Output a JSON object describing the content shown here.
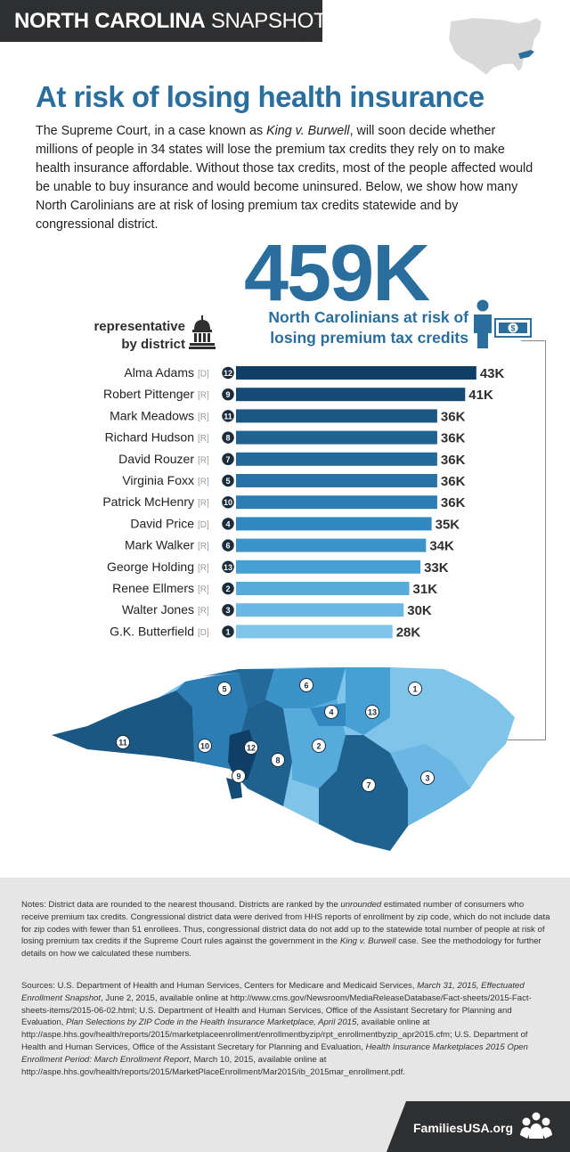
{
  "header": {
    "title_bold": "NORTH CAROLINA",
    "title_light": " SNAPSHOT"
  },
  "title": "At risk of losing health insurance",
  "intro_parts": {
    "a": "The Supreme Court, in a case known as ",
    "case": "King v. Burwell",
    "b": ", will soon decide whether millions of people in 34 states will lose the premium tax credits they rely on to make health insurance affordable. Without those tax credits, most of the people affected would be unable to buy insurance and would become uninsured. Below, we show how many North Carolinians are at risk of losing premium tax credits statewide and by congressional district."
  },
  "big_number": "459K",
  "big_subtitle_1": "North Carolinians at risk of",
  "big_subtitle_2": "losing premium tax credits",
  "money_symbol": "$",
  "rep_label_1": "representative",
  "rep_label_2": "by district",
  "colors": {
    "dark": "#1b3a55",
    "bar_shades": [
      "#0f3f66",
      "#144a73",
      "#1a5782",
      "#1f6290",
      "#23699a",
      "#2772a6",
      "#2c7db3",
      "#3188c0",
      "#3a93c9",
      "#47a0d3",
      "#56abdb",
      "#69b7e2",
      "#7fc4e9"
    ],
    "title_blue": "#2a6e9e"
  },
  "chart_data": {
    "type": "bar",
    "orientation": "horizontal",
    "categories": [
      "Alma Adams",
      "Robert Pittenger",
      "Mark Meadows",
      "Richard Hudson",
      "David Rouzer",
      "Virginia Foxx",
      "Patrick McHenry",
      "David Price",
      "Mark Walker",
      "George Holding",
      "Renee Ellmers",
      "Walter Jones",
      "G.K. Butterfield"
    ],
    "parties": [
      "[D]",
      "[R]",
      "[R]",
      "[R]",
      "[R]",
      "[R]",
      "[R]",
      "[D]",
      "[R]",
      "[R]",
      "[R]",
      "[R]",
      "[D]"
    ],
    "districts": [
      "12",
      "9",
      "11",
      "8",
      "7",
      "5",
      "10",
      "4",
      "6",
      "13",
      "2",
      "3",
      "1"
    ],
    "values": [
      43,
      41,
      36,
      36,
      36,
      36,
      36,
      35,
      34,
      33,
      31,
      30,
      28
    ],
    "value_labels": [
      "43K",
      "41K",
      "36K",
      "36K",
      "36K",
      "36K",
      "36K",
      "35K",
      "34K",
      "33K",
      "31K",
      "30K",
      "28K"
    ],
    "unit": "K"
  },
  "map": {
    "districts": [
      "1",
      "2",
      "3",
      "4",
      "5",
      "6",
      "7",
      "8",
      "9",
      "10",
      "11",
      "12",
      "13"
    ]
  },
  "notes": {
    "a": "Notes: District data are rounded to the nearest thousand. Districts are ranked by the ",
    "unrounded": "unrounded",
    "b": " estimated number of consumers who receive premium tax credits. Congressional district data were derived from HHS reports of enrollment by zip code, which do not include data for zip codes with fewer than 51 enrollees. Thus, congressional district data do not add up to the statewide total number of people at risk of losing premium tax credits if the Supreme Court rules against the government in the ",
    "case": "King v. Burwell",
    "c": " case. See the methodology for further details on how we calculated these numbers."
  },
  "sources": {
    "a": "Sources: U.S. Department of Health and Human Services, Centers for Medicare and Medicaid Services, ",
    "i1": "March 31, 2015, Effectuated Enrollment Snapshot",
    "b": ", June 2, 2015, available online at http://www.cms.gov/Newsroom/MediaReleaseDatabase/Fact-sheets/2015-Fact-sheets-items/2015-06-02.html; U.S. Department of Health and Human Services, Office of the Assistant Secretary for Planning and Evaluation, ",
    "i2": "Plan Selections by ZIP Code in the Health Insurance Marketplace, April 2015",
    "c": ", available online at http://aspe.hhs.gov/health/reports/2015/marketplaceenrollment/enrollmentbyzip/rpt_enrollmentbyzip_apr2015.cfm; U.S. Department of Health and Human Services, Office of the Assistant Secretary for Planning and Evaluation, ",
    "i3": "Health Insurance Marketplaces 2015 Open Enrollment Period: March Enrollment Report",
    "d": ", March 10, 2015, available online at http://aspe.hhs.gov/health/reports/2015/MarketPlaceEnrollment/Mar2015/ib_2015mar_enrollment.pdf."
  },
  "footer": {
    "site": "FamiliesUSA.org"
  }
}
